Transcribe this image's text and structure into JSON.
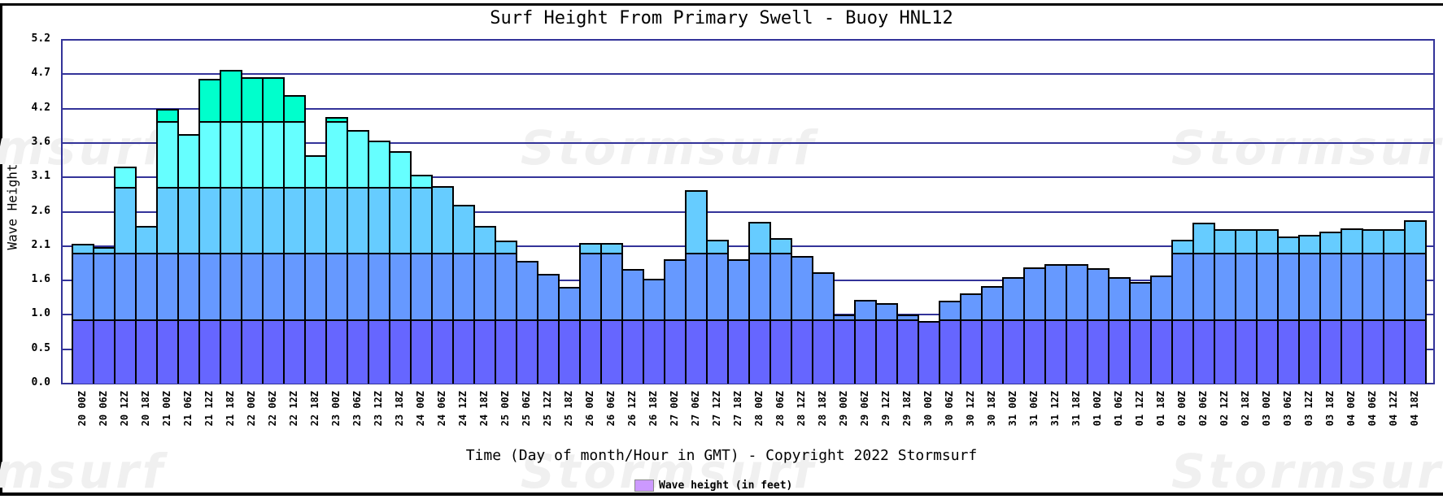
{
  "chart_data": {
    "type": "bar",
    "stacked_color_bands": true,
    "title": "Surf Height From Primary Swell - Buoy HNL12",
    "xlabel": "Time (Day of month/Hour in GMT) - Copyright 2022 Stormsurf",
    "ylabel": "Wave Height",
    "ylim": [
      0,
      5.2
    ],
    "yticks": [
      "0.0",
      "0.5",
      "1.0",
      "1.6",
      "2.1",
      "2.6",
      "3.1",
      "3.6",
      "4.2",
      "4.7",
      "5.2"
    ],
    "grid": true,
    "legend": [
      {
        "label": "Wave height (in feet)",
        "color": "#cc99ff"
      }
    ],
    "legend_position": "bottom",
    "band_colors": [
      {
        "from": 0,
        "to": 1,
        "color": "#6666ff"
      },
      {
        "from": 1,
        "to": 2,
        "color": "#6699ff"
      },
      {
        "from": 2,
        "to": 3,
        "color": "#66ccff"
      },
      {
        "from": 3,
        "to": 4,
        "color": "#66ffff"
      },
      {
        "from": 4,
        "to": 5.2,
        "color": "#00ffcc"
      }
    ],
    "categories": [
      "20 00Z",
      "20 06Z",
      "20 12Z",
      "20 18Z",
      "21 00Z",
      "21 06Z",
      "21 12Z",
      "21 18Z",
      "22 00Z",
      "22 06Z",
      "22 12Z",
      "22 18Z",
      "23 00Z",
      "23 06Z",
      "23 12Z",
      "23 18Z",
      "24 00Z",
      "24 06Z",
      "24 12Z",
      "24 18Z",
      "25 00Z",
      "25 06Z",
      "25 12Z",
      "25 18Z",
      "26 00Z",
      "26 06Z",
      "26 12Z",
      "26 18Z",
      "27 00Z",
      "27 06Z",
      "27 12Z",
      "27 18Z",
      "28 00Z",
      "28 06Z",
      "28 12Z",
      "28 18Z",
      "29 00Z",
      "29 06Z",
      "29 12Z",
      "29 18Z",
      "30 00Z",
      "30 06Z",
      "30 12Z",
      "30 18Z",
      "31 00Z",
      "31 06Z",
      "31 12Z",
      "31 18Z",
      "01 00Z",
      "01 06Z",
      "01 12Z",
      "01 18Z",
      "02 00Z",
      "02 06Z",
      "02 12Z",
      "02 18Z",
      "03 00Z",
      "03 06Z",
      "03 12Z",
      "03 18Z",
      "04 00Z",
      "04 06Z",
      "04 12Z",
      "04 18Z"
    ],
    "series": [
      {
        "name": "Wave height (in feet)",
        "values": [
          2.11,
          2.07,
          3.28,
          2.39,
          4.16,
          3.77,
          4.61,
          4.74,
          4.63,
          4.63,
          4.37,
          3.45,
          4.03,
          3.83,
          3.67,
          3.51,
          3.16,
          2.99,
          2.7,
          2.39,
          2.16,
          1.86,
          1.66,
          1.46,
          2.13,
          2.13,
          1.73,
          1.58,
          1.88,
          2.93,
          2.18,
          1.88,
          2.45,
          2.2,
          1.93,
          1.68,
          1.05,
          1.27,
          1.22,
          1.05,
          0.95,
          1.25,
          1.37,
          1.47,
          1.61,
          1.76,
          1.81,
          1.81,
          1.75,
          1.61,
          1.54,
          1.63,
          2.18,
          2.43,
          2.33,
          2.33,
          2.33,
          2.22,
          2.25,
          2.3,
          2.35,
          2.33,
          2.33,
          2.47
        ]
      }
    ]
  },
  "watermark": "Stormsurf",
  "colors": {
    "gridline": "#333399",
    "frame": "#000000"
  }
}
